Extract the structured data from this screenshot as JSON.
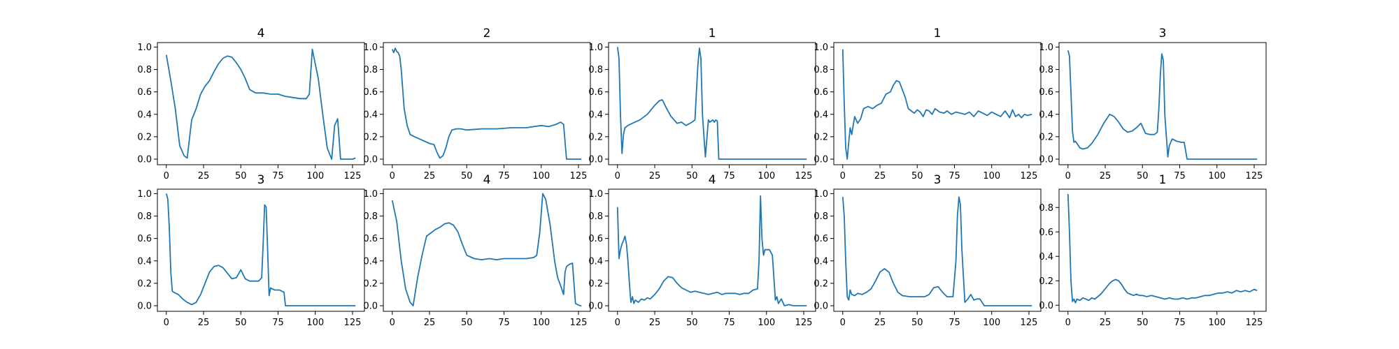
{
  "chart_data": [
    {
      "type": "line",
      "title": "4",
      "xlim": [
        -6,
        133
      ],
      "ylim": [
        -0.05,
        1.04
      ],
      "xticks": [
        "0",
        "25",
        "50",
        "75",
        "100",
        "125"
      ],
      "yticks": [
        "0.0",
        "0.2",
        "0.4",
        "0.6",
        "0.8",
        "1.0"
      ],
      "x": [
        0,
        3,
        6,
        9,
        12,
        14,
        17,
        20,
        23,
        26,
        29,
        32,
        35,
        38,
        41,
        44,
        47,
        50,
        53,
        56,
        60,
        65,
        70,
        75,
        80,
        85,
        90,
        94,
        96,
        98,
        100,
        102,
        105,
        108,
        111,
        113,
        114,
        115,
        117,
        119,
        122,
        125,
        127
      ],
      "values": [
        0.93,
        0.7,
        0.45,
        0.12,
        0.03,
        0.01,
        0.35,
        0.45,
        0.58,
        0.65,
        0.7,
        0.78,
        0.85,
        0.9,
        0.92,
        0.91,
        0.86,
        0.8,
        0.72,
        0.62,
        0.59,
        0.59,
        0.58,
        0.58,
        0.56,
        0.55,
        0.54,
        0.54,
        0.58,
        0.98,
        0.85,
        0.72,
        0.4,
        0.1,
        0.0,
        0.3,
        0.33,
        0.36,
        0.0,
        0.0,
        0.0,
        0.0,
        0.01
      ]
    },
    {
      "type": "line",
      "title": "2",
      "xlim": [
        -6,
        133
      ],
      "ylim": [
        -0.05,
        1.04
      ],
      "xticks": [
        "0",
        "25",
        "50",
        "75",
        "100",
        "125"
      ],
      "yticks": [
        "0.0",
        "0.2",
        "0.4",
        "0.6",
        "0.8",
        "1.0"
      ],
      "x": [
        0,
        1,
        2,
        3,
        4,
        5,
        6,
        8,
        10,
        12,
        15,
        20,
        25,
        28,
        30,
        32,
        34,
        36,
        38,
        40,
        43,
        46,
        50,
        60,
        70,
        80,
        90,
        95,
        100,
        105,
        110,
        113,
        115,
        117,
        120,
        125,
        127
      ],
      "values": [
        0.98,
        0.95,
        0.99,
        0.96,
        0.95,
        0.92,
        0.8,
        0.45,
        0.3,
        0.22,
        0.2,
        0.17,
        0.14,
        0.13,
        0.06,
        0.01,
        0.03,
        0.1,
        0.2,
        0.26,
        0.27,
        0.27,
        0.26,
        0.27,
        0.27,
        0.28,
        0.28,
        0.29,
        0.3,
        0.29,
        0.31,
        0.33,
        0.31,
        0.0,
        0.0,
        0.0,
        0.0
      ]
    },
    {
      "type": "line",
      "title": "1",
      "xlim": [
        -6,
        133
      ],
      "ylim": [
        -0.05,
        1.04
      ],
      "xticks": [
        "0",
        "25",
        "50",
        "75",
        "100",
        "125"
      ],
      "yticks": [
        "0.0",
        "0.2",
        "0.4",
        "0.6",
        "0.8",
        "1.0"
      ],
      "x": [
        0,
        1,
        2,
        3,
        4,
        5,
        7,
        10,
        15,
        20,
        25,
        28,
        30,
        33,
        36,
        40,
        43,
        46,
        50,
        52,
        53,
        54,
        55,
        56,
        57,
        59,
        61,
        62,
        64,
        65,
        66,
        67,
        68,
        70,
        80,
        90,
        100,
        110,
        120,
        127
      ],
      "values": [
        1.0,
        0.9,
        0.4,
        0.05,
        0.22,
        0.28,
        0.3,
        0.32,
        0.35,
        0.4,
        0.48,
        0.52,
        0.53,
        0.45,
        0.38,
        0.32,
        0.33,
        0.3,
        0.33,
        0.35,
        0.6,
        0.85,
        0.99,
        0.9,
        0.4,
        0.02,
        0.35,
        0.33,
        0.35,
        0.33,
        0.35,
        0.34,
        0.0,
        0.0,
        0.0,
        0.0,
        0.0,
        0.0,
        0.0,
        0.0
      ]
    },
    {
      "type": "line",
      "title": "1",
      "xlim": [
        -6,
        133
      ],
      "ylim": [
        -0.05,
        1.04
      ],
      "xticks": [
        "0",
        "25",
        "50",
        "75",
        "100",
        "125"
      ],
      "yticks": [
        "0.0",
        "0.2",
        "0.4",
        "0.6",
        "0.8",
        "1.0"
      ],
      "x": [
        0,
        1,
        2,
        3,
        4,
        5,
        6,
        7,
        8,
        10,
        12,
        14,
        17,
        20,
        23,
        26,
        29,
        32,
        34,
        36,
        38,
        40,
        42,
        44,
        46,
        48,
        50,
        52,
        54,
        56,
        58,
        60,
        62,
        65,
        68,
        70,
        73,
        76,
        79,
        82,
        85,
        88,
        91,
        94,
        97,
        100,
        103,
        106,
        109,
        112,
        114,
        116,
        118,
        120,
        122,
        124,
        127
      ],
      "values": [
        0.98,
        0.5,
        0.1,
        0.0,
        0.15,
        0.28,
        0.22,
        0.3,
        0.38,
        0.32,
        0.36,
        0.45,
        0.47,
        0.45,
        0.48,
        0.5,
        0.58,
        0.6,
        0.66,
        0.7,
        0.69,
        0.62,
        0.55,
        0.45,
        0.43,
        0.41,
        0.44,
        0.42,
        0.38,
        0.44,
        0.43,
        0.4,
        0.45,
        0.42,
        0.41,
        0.43,
        0.4,
        0.42,
        0.41,
        0.4,
        0.42,
        0.38,
        0.43,
        0.41,
        0.39,
        0.42,
        0.4,
        0.38,
        0.43,
        0.37,
        0.44,
        0.38,
        0.4,
        0.37,
        0.4,
        0.39,
        0.4
      ]
    },
    {
      "type": "line",
      "title": "3",
      "xlim": [
        -6,
        133
      ],
      "ylim": [
        -0.05,
        1.04
      ],
      "xticks": [
        "0",
        "25",
        "50",
        "75",
        "100",
        "125"
      ],
      "yticks": [
        "0.0",
        "0.2",
        "0.4",
        "0.6",
        "0.8",
        "1.0"
      ],
      "x": [
        0,
        1,
        2,
        3,
        4,
        5,
        6,
        8,
        10,
        13,
        16,
        20,
        24,
        28,
        31,
        34,
        37,
        40,
        43,
        46,
        49,
        52,
        55,
        58,
        60,
        61,
        62,
        63,
        64,
        65,
        67,
        68,
        70,
        73,
        76,
        78,
        80,
        90,
        100,
        110,
        120,
        127
      ],
      "values": [
        0.97,
        0.92,
        0.6,
        0.25,
        0.15,
        0.16,
        0.14,
        0.1,
        0.09,
        0.1,
        0.14,
        0.22,
        0.32,
        0.4,
        0.38,
        0.33,
        0.27,
        0.24,
        0.25,
        0.28,
        0.32,
        0.23,
        0.22,
        0.22,
        0.24,
        0.45,
        0.75,
        0.94,
        0.88,
        0.4,
        0.02,
        0.12,
        0.18,
        0.16,
        0.15,
        0.15,
        0.0,
        0.0,
        0.0,
        0.0,
        0.0,
        0.0
      ]
    },
    {
      "type": "line",
      "title": "3",
      "xlim": [
        -6,
        133
      ],
      "ylim": [
        -0.05,
        1.04
      ],
      "xticks": [
        "0",
        "25",
        "50",
        "75",
        "100",
        "125"
      ],
      "yticks": [
        "0.0",
        "0.2",
        "0.4",
        "0.6",
        "0.8",
        "1.0"
      ],
      "x": [
        0,
        1,
        2,
        3,
        4,
        5,
        8,
        11,
        14,
        17,
        20,
        23,
        26,
        29,
        32,
        35,
        38,
        41,
        44,
        47,
        50,
        53,
        56,
        59,
        62,
        64,
        65,
        66,
        67,
        68,
        69,
        70,
        71,
        73,
        76,
        79,
        80,
        85,
        90,
        100,
        110,
        120,
        127
      ],
      "values": [
        1.0,
        0.95,
        0.7,
        0.3,
        0.13,
        0.12,
        0.1,
        0.06,
        0.03,
        0.01,
        0.03,
        0.1,
        0.2,
        0.3,
        0.35,
        0.36,
        0.34,
        0.29,
        0.24,
        0.25,
        0.32,
        0.24,
        0.22,
        0.22,
        0.22,
        0.25,
        0.55,
        0.9,
        0.88,
        0.5,
        0.09,
        0.16,
        0.15,
        0.14,
        0.14,
        0.12,
        0.0,
        0.0,
        0.0,
        0.0,
        0.0,
        0.0,
        0.0
      ]
    },
    {
      "type": "line",
      "title": "4",
      "xlim": [
        -6,
        133
      ],
      "ylim": [
        -0.05,
        1.04
      ],
      "xticks": [
        "0",
        "25",
        "50",
        "75",
        "100",
        "125"
      ],
      "yticks": [
        "0.0",
        "0.2",
        "0.4",
        "0.6",
        "0.8",
        "1.0"
      ],
      "x": [
        0,
        3,
        6,
        9,
        12,
        14,
        17,
        20,
        23,
        26,
        29,
        32,
        35,
        38,
        41,
        44,
        47,
        50,
        55,
        60,
        65,
        70,
        75,
        80,
        85,
        90,
        95,
        97,
        99,
        101,
        103,
        106,
        109,
        111,
        113,
        115,
        116,
        117,
        119,
        121,
        123,
        126,
        127
      ],
      "values": [
        0.94,
        0.75,
        0.4,
        0.15,
        0.03,
        0.0,
        0.25,
        0.45,
        0.62,
        0.65,
        0.68,
        0.7,
        0.73,
        0.74,
        0.72,
        0.66,
        0.55,
        0.45,
        0.42,
        0.41,
        0.42,
        0.41,
        0.42,
        0.42,
        0.42,
        0.42,
        0.43,
        0.45,
        0.65,
        1.0,
        0.95,
        0.72,
        0.4,
        0.25,
        0.18,
        0.1,
        0.3,
        0.35,
        0.37,
        0.38,
        0.02,
        0.0,
        0.0
      ]
    },
    {
      "type": "line",
      "title": "4",
      "xlim": [
        -6,
        133
      ],
      "ylim": [
        -0.05,
        1.04
      ],
      "xticks": [
        "0",
        "25",
        "50",
        "75",
        "100",
        "125"
      ],
      "yticks": [
        "0.0",
        "0.2",
        "0.4",
        "0.6",
        "0.8",
        "1.0"
      ],
      "x": [
        0,
        1,
        2,
        3,
        4,
        5,
        6,
        7,
        8,
        9,
        10,
        11,
        12,
        14,
        16,
        18,
        20,
        22,
        25,
        28,
        31,
        34,
        37,
        40,
        43,
        46,
        49,
        52,
        55,
        58,
        61,
        64,
        67,
        70,
        73,
        76,
        79,
        82,
        85,
        88,
        91,
        94,
        95,
        96,
        97,
        98,
        99,
        100,
        102,
        104,
        106,
        107,
        108,
        110,
        112,
        115,
        118,
        122,
        127
      ],
      "values": [
        0.88,
        0.42,
        0.5,
        0.55,
        0.58,
        0.62,
        0.55,
        0.4,
        0.2,
        0.03,
        0.08,
        0.02,
        0.05,
        0.03,
        0.06,
        0.05,
        0.07,
        0.06,
        0.1,
        0.15,
        0.22,
        0.26,
        0.25,
        0.2,
        0.16,
        0.14,
        0.12,
        0.13,
        0.12,
        0.11,
        0.1,
        0.11,
        0.12,
        0.1,
        0.11,
        0.11,
        0.11,
        0.1,
        0.11,
        0.11,
        0.14,
        0.15,
        0.4,
        0.98,
        0.6,
        0.45,
        0.5,
        0.5,
        0.5,
        0.45,
        0.05,
        0.08,
        0.02,
        0.06,
        0.0,
        0.01,
        0.0,
        0.0,
        0.0
      ]
    },
    {
      "type": "line",
      "title": "3",
      "xlim": [
        -6,
        133
      ],
      "ylim": [
        -0.05,
        1.04
      ],
      "xticks": [
        "0",
        "25",
        "50",
        "75",
        "100",
        "125"
      ],
      "yticks": [
        "0.0",
        "0.2",
        "0.4",
        "0.6",
        "0.8",
        "1.0"
      ],
      "x": [
        0,
        1,
        2,
        3,
        4,
        5,
        6,
        8,
        10,
        13,
        16,
        19,
        22,
        25,
        28,
        31,
        34,
        37,
        40,
        45,
        50,
        55,
        58,
        61,
        64,
        67,
        70,
        74,
        76,
        77,
        78,
        79,
        80,
        82,
        84,
        86,
        88,
        90,
        92,
        95,
        100,
        110,
        120,
        127
      ],
      "values": [
        0.97,
        0.8,
        0.4,
        0.08,
        0.05,
        0.14,
        0.1,
        0.09,
        0.11,
        0.1,
        0.12,
        0.15,
        0.22,
        0.3,
        0.33,
        0.3,
        0.2,
        0.12,
        0.09,
        0.08,
        0.08,
        0.08,
        0.1,
        0.16,
        0.17,
        0.12,
        0.08,
        0.08,
        0.4,
        0.8,
        0.97,
        0.9,
        0.5,
        0.03,
        0.06,
        0.1,
        0.05,
        0.06,
        0.06,
        0.0,
        0.0,
        0.0,
        0.0,
        0.0
      ]
    },
    {
      "type": "line",
      "title": "1",
      "xlim": [
        -6,
        133
      ],
      "ylim": [
        -0.05,
        0.95
      ],
      "xticks": [
        "0",
        "25",
        "50",
        "75",
        "100",
        "125"
      ],
      "yticks": [
        "0.0",
        "0.2",
        "0.4",
        "0.6",
        "0.8"
      ],
      "x": [
        0,
        1,
        2,
        3,
        4,
        5,
        6,
        8,
        10,
        12,
        14,
        16,
        18,
        20,
        22,
        24,
        26,
        28,
        30,
        32,
        34,
        36,
        38,
        40,
        42,
        44,
        46,
        48,
        50,
        53,
        56,
        59,
        62,
        65,
        68,
        71,
        74,
        77,
        80,
        83,
        86,
        89,
        92,
        95,
        98,
        101,
        104,
        107,
        110,
        113,
        116,
        119,
        122,
        125,
        127
      ],
      "values": [
        0.91,
        0.6,
        0.2,
        0.03,
        0.05,
        0.02,
        0.05,
        0.04,
        0.06,
        0.05,
        0.04,
        0.06,
        0.05,
        0.07,
        0.09,
        0.12,
        0.15,
        0.18,
        0.2,
        0.21,
        0.2,
        0.17,
        0.13,
        0.1,
        0.09,
        0.08,
        0.09,
        0.08,
        0.08,
        0.07,
        0.08,
        0.07,
        0.06,
        0.05,
        0.06,
        0.05,
        0.05,
        0.06,
        0.05,
        0.06,
        0.06,
        0.07,
        0.08,
        0.08,
        0.09,
        0.1,
        0.1,
        0.11,
        0.1,
        0.12,
        0.11,
        0.12,
        0.11,
        0.13,
        0.12
      ]
    }
  ]
}
